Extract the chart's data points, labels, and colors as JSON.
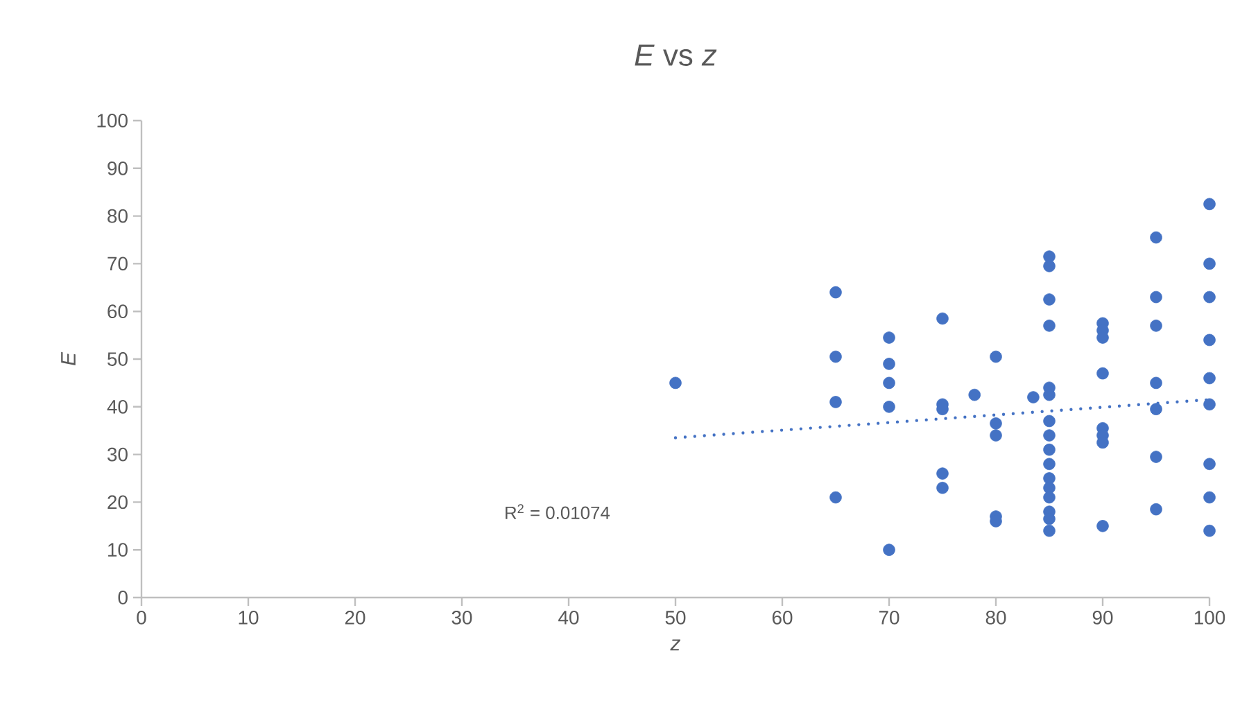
{
  "chart_data": {
    "type": "scatter",
    "title": "*E* vs *z*",
    "xlabel": "z",
    "ylabel": "E",
    "xlim": [
      0,
      100
    ],
    "xticks": [
      0,
      10,
      20,
      30,
      40,
      50,
      60,
      70,
      80,
      90,
      100
    ],
    "ylim": [
      0,
      100
    ],
    "yticks": [
      0,
      10,
      20,
      30,
      40,
      50,
      60,
      70,
      80,
      90,
      100
    ],
    "grid": false,
    "series": [
      {
        "color": "#4472c4",
        "marker": "circle",
        "x": [
          50,
          65,
          65,
          65,
          65,
          70,
          70,
          70,
          70,
          70,
          75,
          75,
          75,
          75,
          75,
          78,
          80,
          80,
          80,
          80,
          80,
          83.5,
          85,
          85,
          85,
          85,
          85,
          85,
          85,
          85,
          85,
          85,
          85,
          85,
          85,
          85,
          85,
          85,
          90,
          90,
          90,
          90,
          90,
          90,
          90,
          90,
          95,
          95,
          95,
          95,
          95,
          95,
          95,
          100,
          100,
          100,
          100,
          100,
          100,
          100,
          100,
          100
        ],
        "values": [
          45,
          64,
          50.5,
          41,
          21,
          54.5,
          49,
          45,
          40,
          10,
          58.5,
          40.5,
          39.5,
          26,
          23,
          42.5,
          50.5,
          36.5,
          34,
          17,
          16,
          42,
          71.5,
          69.5,
          62.5,
          57,
          44,
          42.5,
          37,
          34,
          31,
          28,
          25,
          23,
          21,
          18,
          16.5,
          14,
          57.5,
          56,
          54.5,
          47,
          35.5,
          34,
          32.5,
          15,
          75.5,
          63,
          57,
          45,
          39.5,
          29.5,
          18.5,
          82.5,
          70,
          63,
          54,
          46,
          40.5,
          28,
          21,
          14
        ]
      },
      {
        "type": "line",
        "color": "#4472c4",
        "line_style": "dotted",
        "marker": "none",
        "x": [
          50,
          100
        ],
        "values": [
          33.5,
          41.5
        ]
      }
    ],
    "annotations": [
      "R$^{2}$ = 0.01074"
    ]
  }
}
